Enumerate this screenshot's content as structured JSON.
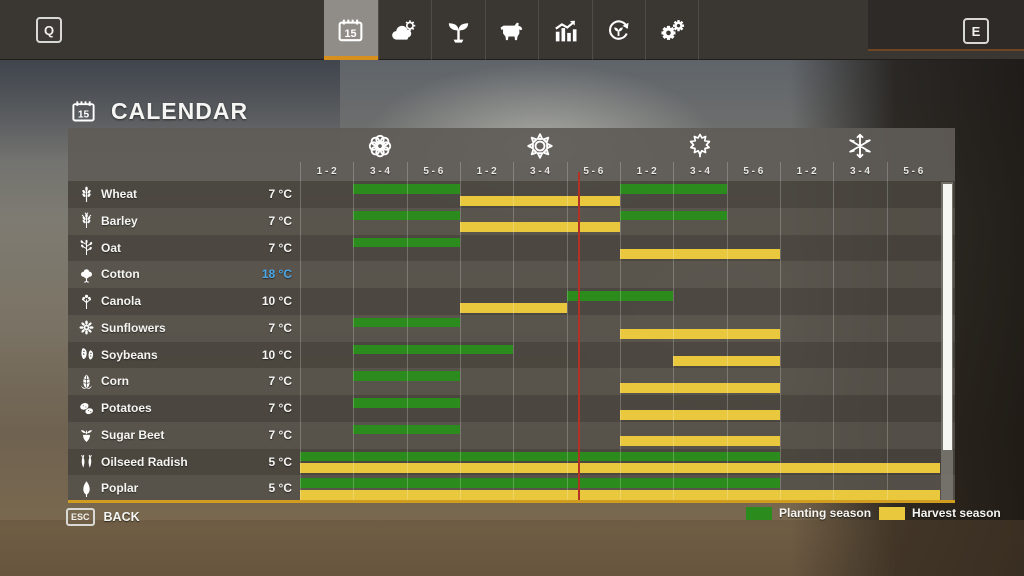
{
  "topbar": {
    "left_key": "Q",
    "right_key": "E",
    "calendar_day": "15",
    "tabs": [
      {
        "name": "calendar",
        "icon": "calendar-icon",
        "active": true
      },
      {
        "name": "weather",
        "icon": "weather-icon",
        "active": false
      },
      {
        "name": "crops",
        "icon": "sprout-icon",
        "active": false
      },
      {
        "name": "animals",
        "icon": "cow-icon",
        "active": false
      },
      {
        "name": "economy",
        "icon": "stats-icon",
        "active": false
      },
      {
        "name": "rotation",
        "icon": "cycle-icon",
        "active": false
      },
      {
        "name": "settings",
        "icon": "settings-icon",
        "active": false
      }
    ]
  },
  "page": {
    "title": "CALENDAR"
  },
  "calendar": {
    "seasons": [
      {
        "name": "spring",
        "icon": "flower-icon"
      },
      {
        "name": "summer",
        "icon": "sun-icon"
      },
      {
        "name": "autumn",
        "icon": "leaf-icon"
      },
      {
        "name": "winter",
        "icon": "snowflake-icon"
      }
    ],
    "period_labels": [
      "1 - 2",
      "3 - 4",
      "5 - 6"
    ],
    "columns_per_season": 3,
    "total_columns": 12,
    "current_day_marker_column": 6.2,
    "crops": [
      {
        "name": "Wheat",
        "temp": "7 °C",
        "icon": "wheat-icon",
        "plant": [
          [
            2,
            3
          ],
          [
            7,
            8
          ]
        ],
        "harvest": [
          [
            4,
            6
          ]
        ]
      },
      {
        "name": "Barley",
        "temp": "7 °C",
        "icon": "barley-icon",
        "plant": [
          [
            2,
            3
          ],
          [
            7,
            8
          ]
        ],
        "harvest": [
          [
            4,
            6
          ]
        ]
      },
      {
        "name": "Oat",
        "temp": "7 °C",
        "icon": "oat-icon",
        "plant": [
          [
            2,
            3
          ]
        ],
        "harvest": [
          [
            7,
            9
          ]
        ]
      },
      {
        "name": "Cotton",
        "temp": "18 °C",
        "temp_color": "#4aa7e8",
        "icon": "cotton-icon",
        "plant": [],
        "harvest": []
      },
      {
        "name": "Canola",
        "temp": "10 °C",
        "icon": "canola-icon",
        "plant": [
          [
            6,
            7
          ]
        ],
        "harvest": [
          [
            4,
            5
          ]
        ]
      },
      {
        "name": "Sunflowers",
        "temp": "7 °C",
        "icon": "sunflower-icon",
        "plant": [
          [
            2,
            3
          ]
        ],
        "harvest": [
          [
            7,
            9
          ]
        ]
      },
      {
        "name": "Soybeans",
        "temp": "10 °C",
        "icon": "soybean-icon",
        "plant": [
          [
            2,
            4
          ]
        ],
        "harvest": [
          [
            8,
            9
          ]
        ]
      },
      {
        "name": "Corn",
        "temp": "7 °C",
        "icon": "corn-icon",
        "plant": [
          [
            2,
            3
          ]
        ],
        "harvest": [
          [
            7,
            9
          ]
        ]
      },
      {
        "name": "Potatoes",
        "temp": "7 °C",
        "icon": "potato-icon",
        "plant": [
          [
            2,
            3
          ]
        ],
        "harvest": [
          [
            7,
            9
          ]
        ]
      },
      {
        "name": "Sugar Beet",
        "temp": "7 °C",
        "icon": "sugar-beet-icon",
        "plant": [
          [
            2,
            3
          ]
        ],
        "harvest": [
          [
            7,
            9
          ]
        ]
      },
      {
        "name": "Oilseed Radish",
        "temp": "5 °C",
        "icon": "oilseed-radish-icon",
        "plant": [
          [
            1,
            9
          ]
        ],
        "harvest": [
          [
            1,
            12
          ]
        ]
      },
      {
        "name": "Poplar",
        "temp": "5 °C",
        "icon": "poplar-icon",
        "plant": [
          [
            1,
            9
          ]
        ],
        "harvest": [
          [
            1,
            12
          ]
        ]
      }
    ],
    "legend": [
      {
        "label": "Planting season",
        "color": "#2b8c1d"
      },
      {
        "label": "Harvest season",
        "color": "#e9c83d"
      }
    ]
  },
  "footer": {
    "key": "ESC",
    "label": "BACK"
  },
  "colors": {
    "planting_green": "#2b8c1d",
    "harvest_yellow": "#e9c83d",
    "current_day_red": "#b33125",
    "accent_orange": "#d78f1e",
    "panel_bottom_border": "#d09d20",
    "cotton_temp_blue": "#4aa7e8"
  }
}
